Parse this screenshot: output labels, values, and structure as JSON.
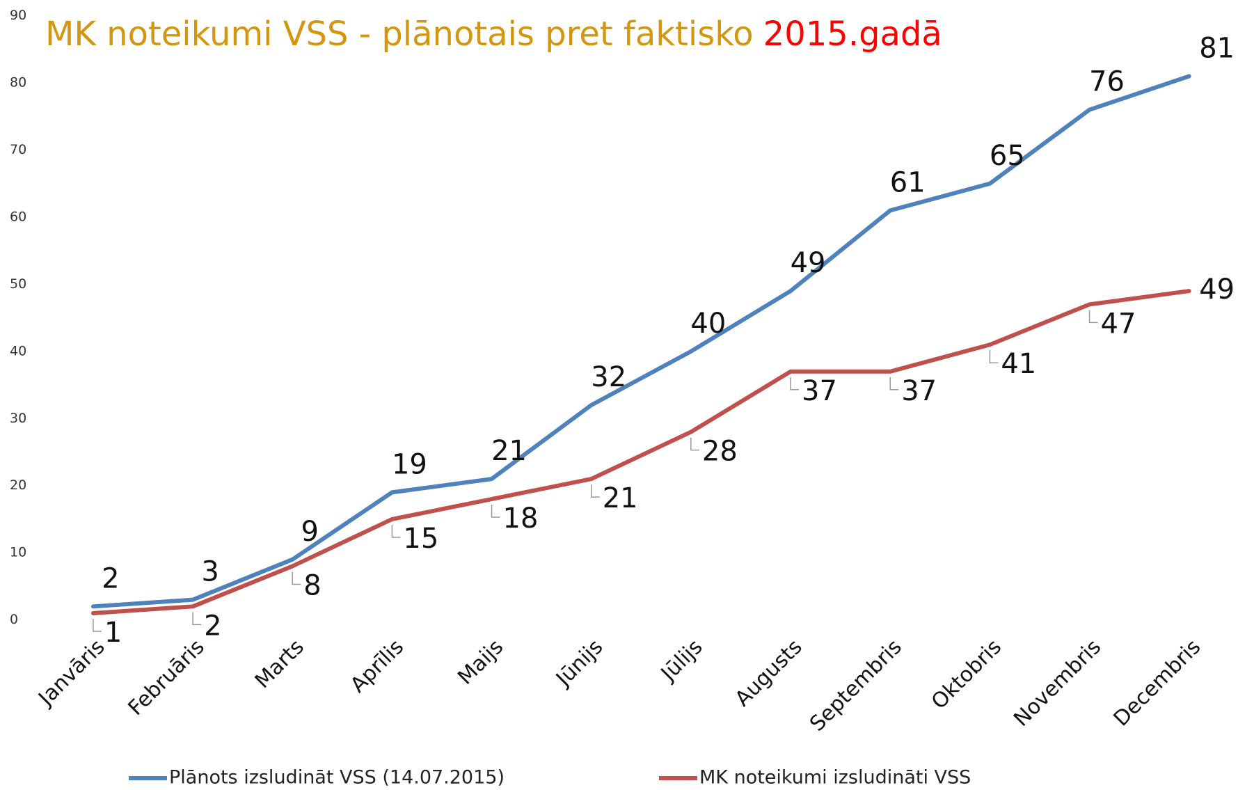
{
  "chart_data": {
    "type": "line",
    "title": "MK noteikumi VSS  - plānotais pret faktisko",
    "title_year": "2015.gadā",
    "categories": [
      "Janvāris",
      "Februāris",
      "Marts",
      "Aprīlis",
      "Maijs",
      "Jūnijs",
      "Jūlijs",
      "Augusts",
      "Septembris",
      "Oktobris",
      "Novembris",
      "Decembris"
    ],
    "series": [
      {
        "name": "Plānots izsludināt VSS (14.07.2015)",
        "color": "#4f81bd",
        "values": [
          2,
          3,
          9,
          19,
          21,
          32,
          40,
          49,
          61,
          65,
          76,
          81
        ]
      },
      {
        "name": "MK noteikumi  izsludināti VSS",
        "color": "#c0504d",
        "values": [
          1,
          2,
          8,
          15,
          18,
          21,
          28,
          37,
          37,
          41,
          47,
          49
        ]
      }
    ],
    "ylim": [
      0,
      90
    ],
    "yticks": [
      0,
      10,
      20,
      30,
      40,
      50,
      60,
      70,
      80,
      90
    ],
    "grid": false,
    "legend": "bottom"
  }
}
